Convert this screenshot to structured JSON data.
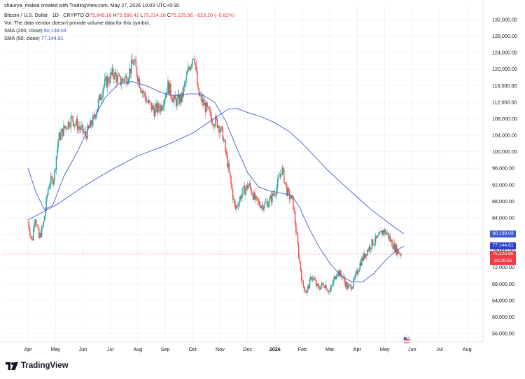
{
  "header": {
    "creator": "shaurya_malwa created with TradingView.com, May 27, 2026 10:03 UTC+5:30",
    "symbol": "Bitcoin / U.S. Dollar · 1D · CRYPTO",
    "open_label": "O",
    "open": "75,849.16",
    "high_label": "H",
    "high": "75,998.42",
    "low_label": "L",
    "low": "75,214.18",
    "close_label": "C",
    "close": "75,225.96",
    "change": "−623.20 (−0.82%)",
    "vol_note": "Vol: The data vendor doesn't provide volume data for this symbol.",
    "sma200_label": "SMA (200, close)",
    "sma200_value": "80,139.03",
    "sma50_label": "SMA (50, close)",
    "sma50_value": "77,144.81"
  },
  "price_tags": {
    "sma200": "80,139.03",
    "sma50": "77,144.81",
    "last": "75,225.96",
    "countdown": "19:26:55"
  },
  "footer": {
    "brand": "TradingView"
  },
  "colors": {
    "up": "#26a69a",
    "down": "#ef5350",
    "sma200": "#3f5bd1",
    "sma50": "#3f5bd1",
    "sma200_tag": "#3f5bd1",
    "sma50_tag": "#2f3fc9",
    "last_tag": "#ef3b48",
    "grid": "#f0f3fa"
  },
  "chart_data": {
    "type": "candlestick",
    "x_tick_labels": [
      "Apr",
      "May",
      "Jun",
      "Jul",
      "Aug",
      "Sep",
      "Oct",
      "Nov",
      "Dec",
      "2026",
      "Feb",
      "Mar",
      "Apr",
      "May",
      "Jun",
      "Jul",
      "Aug"
    ],
    "y_tick_labels": [
      "132,000.00",
      "128,000.00",
      "124,000.00",
      "120,000.00",
      "116,000.00",
      "112,000.00",
      "108,000.00",
      "104,000.00",
      "100,000.00",
      "96,000.00",
      "92,000.00",
      "88,000.00",
      "84,000.00",
      "80,000.00",
      "76,000.00",
      "72,000.00",
      "68,000.00",
      "64,000.00",
      "60,000.00",
      "56,000.00"
    ],
    "y_ticks": [
      132000,
      128000,
      124000,
      120000,
      116000,
      112000,
      108000,
      104000,
      100000,
      96000,
      92000,
      88000,
      84000,
      80000,
      76000,
      72000,
      68000,
      64000,
      60000,
      56000
    ],
    "ylim": [
      53000,
      135000
    ],
    "x_month_index": [
      0,
      1,
      2,
      3,
      4,
      5,
      6,
      7,
      8,
      9,
      10,
      11,
      12,
      13,
      14,
      15,
      16
    ],
    "price_path": [
      [
        0,
        83000
      ],
      [
        0.15,
        78000
      ],
      [
        0.25,
        85000
      ],
      [
        0.4,
        79000
      ],
      [
        0.55,
        82000
      ],
      [
        0.75,
        92000
      ],
      [
        0.95,
        94000
      ],
      [
        1.1,
        103000
      ],
      [
        1.35,
        106000
      ],
      [
        1.6,
        108000
      ],
      [
        1.85,
        106000
      ],
      [
        2.1,
        104000
      ],
      [
        2.4,
        108000
      ],
      [
        2.75,
        116000
      ],
      [
        3.1,
        119000
      ],
      [
        3.35,
        117000
      ],
      [
        3.6,
        118000
      ],
      [
        3.85,
        122000
      ],
      [
        4.1,
        116000
      ],
      [
        4.35,
        112000
      ],
      [
        4.6,
        110000
      ],
      [
        4.85,
        111000
      ],
      [
        5.1,
        116000
      ],
      [
        5.35,
        112000
      ],
      [
        5.6,
        113000
      ],
      [
        5.85,
        120000
      ],
      [
        6.05,
        124000
      ],
      [
        6.2,
        114000
      ],
      [
        6.45,
        111000
      ],
      [
        6.7,
        108000
      ],
      [
        6.9,
        107000
      ],
      [
        7.1,
        104000
      ],
      [
        7.3,
        96000
      ],
      [
        7.55,
        86000
      ],
      [
        7.8,
        90000
      ],
      [
        8.05,
        92000
      ],
      [
        8.3,
        88000
      ],
      [
        8.55,
        87000
      ],
      [
        8.8,
        88000
      ],
      [
        9.05,
        91000
      ],
      [
        9.25,
        96000
      ],
      [
        9.45,
        90000
      ],
      [
        9.65,
        88000
      ],
      [
        9.85,
        76000
      ],
      [
        10.0,
        68000
      ],
      [
        10.15,
        66000
      ],
      [
        10.35,
        70000
      ],
      [
        10.55,
        67000
      ],
      [
        10.8,
        68000
      ],
      [
        11.0,
        66000
      ],
      [
        11.25,
        71000
      ],
      [
        11.45,
        70000
      ],
      [
        11.65,
        67000
      ],
      [
        11.85,
        68000
      ],
      [
        12.1,
        73000
      ],
      [
        12.35,
        76000
      ],
      [
        12.55,
        78000
      ],
      [
        12.75,
        79000
      ],
      [
        12.95,
        81000
      ],
      [
        13.1,
        80000
      ],
      [
        13.25,
        78000
      ],
      [
        13.45,
        76000
      ],
      [
        13.6,
        75225
      ]
    ],
    "sma200_path": [
      [
        0.0,
        83500
      ],
      [
        1.0,
        87000
      ],
      [
        2.0,
        91500
      ],
      [
        3.0,
        95500
      ],
      [
        4.0,
        99000
      ],
      [
        5.0,
        101500
      ],
      [
        6.0,
        104500
      ],
      [
        7.0,
        109000
      ],
      [
        7.3,
        110300
      ],
      [
        7.6,
        110500
      ],
      [
        8.0,
        109500
      ],
      [
        8.5,
        108500
      ],
      [
        9.0,
        107000
      ],
      [
        9.5,
        105000
      ],
      [
        10.0,
        102000
      ],
      [
        10.5,
        98500
      ],
      [
        11.0,
        95000
      ],
      [
        11.5,
        92000
      ],
      [
        12.0,
        89000
      ],
      [
        12.5,
        86000
      ],
      [
        13.0,
        83500
      ],
      [
        13.4,
        81500
      ],
      [
        13.7,
        80139
      ]
    ],
    "sma50_path": [
      [
        0.0,
        96000
      ],
      [
        0.3,
        90000
      ],
      [
        0.6,
        86000
      ],
      [
        0.9,
        87000
      ],
      [
        1.3,
        94000
      ],
      [
        1.8,
        100000
      ],
      [
        2.3,
        107000
      ],
      [
        2.8,
        113000
      ],
      [
        3.3,
        116500
      ],
      [
        3.8,
        117000
      ],
      [
        4.3,
        116000
      ],
      [
        4.8,
        114500
      ],
      [
        5.3,
        113500
      ],
      [
        5.8,
        114000
      ],
      [
        6.3,
        114000
      ],
      [
        6.8,
        112000
      ],
      [
        7.2,
        107500
      ],
      [
        7.6,
        101000
      ],
      [
        8.0,
        95000
      ],
      [
        8.4,
        91500
      ],
      [
        8.8,
        90500
      ],
      [
        9.2,
        90000
      ],
      [
        9.6,
        89500
      ],
      [
        9.9,
        86500
      ],
      [
        10.2,
        82000
      ],
      [
        10.6,
        77000
      ],
      [
        11.0,
        73000
      ],
      [
        11.4,
        70000
      ],
      [
        11.8,
        68500
      ],
      [
        12.2,
        68500
      ],
      [
        12.6,
        70500
      ],
      [
        13.0,
        73500
      ],
      [
        13.4,
        76000
      ],
      [
        13.7,
        77145
      ]
    ],
    "last_price": 75225.96,
    "sma200_last": 80139.03,
    "sma50_last": 77144.81
  }
}
